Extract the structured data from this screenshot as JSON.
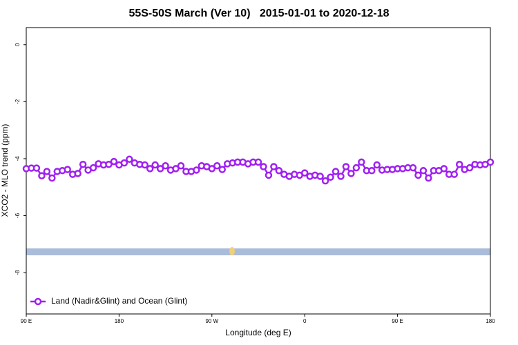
{
  "chart_data": {
    "type": "line",
    "title": "55S-50S March (Ver 10)   2015-01-01 to 2020-12-18",
    "xlabel": "Longitude (deg E)",
    "ylabel": "XCO2 - MLO trend (ppm)",
    "x": [
      90,
      95,
      100,
      105,
      110,
      115,
      120,
      125,
      130,
      135,
      140,
      145,
      150,
      155,
      160,
      165,
      170,
      175,
      180,
      185,
      190,
      195,
      200,
      205,
      210,
      215,
      220,
      225,
      230,
      235,
      240,
      245,
      250,
      255,
      260,
      265,
      270,
      275,
      280,
      285,
      290,
      295,
      300,
      305,
      310,
      315,
      320,
      325,
      330,
      335,
      340,
      345,
      350,
      355,
      360,
      365,
      370,
      375,
      380,
      385,
      390,
      395,
      400,
      405,
      410,
      415,
      420,
      425,
      430,
      435,
      440,
      445,
      450,
      455,
      460,
      465,
      470,
      475,
      480,
      485,
      490,
      495,
      500,
      505,
      510,
      515,
      520,
      525,
      530,
      535,
      540
    ],
    "series": [
      {
        "name": "Land (Nadir&Glint) and Ocean (Glint)",
        "color": "#a020f0",
        "values": [
          -4.35,
          -4.33,
          -4.33,
          -4.6,
          -4.45,
          -4.68,
          -4.45,
          -4.42,
          -4.38,
          -4.55,
          -4.52,
          -4.2,
          -4.4,
          -4.32,
          -4.18,
          -4.22,
          -4.2,
          -4.1,
          -4.22,
          -4.15,
          -4.02,
          -4.15,
          -4.2,
          -4.22,
          -4.35,
          -4.22,
          -4.35,
          -4.25,
          -4.4,
          -4.35,
          -4.25,
          -4.45,
          -4.45,
          -4.4,
          -4.25,
          -4.28,
          -4.35,
          -4.25,
          -4.38,
          -4.18,
          -4.15,
          -4.12,
          -4.12,
          -4.18,
          -4.12,
          -4.12,
          -4.28,
          -4.58,
          -4.28,
          -4.42,
          -4.55,
          -4.62,
          -4.55,
          -4.58,
          -4.5,
          -4.62,
          -4.58,
          -4.62,
          -4.78,
          -4.65,
          -4.45,
          -4.62,
          -4.28,
          -4.52,
          -4.32,
          -4.12,
          -4.42,
          -4.42,
          -4.22,
          -4.4,
          -4.38,
          -4.38,
          -4.35,
          -4.35,
          -4.32,
          -4.32,
          -4.58,
          -4.42,
          -4.68,
          -4.42,
          -4.42,
          -4.35,
          -4.55,
          -4.55,
          -4.2,
          -4.38,
          -4.32,
          -4.2,
          -4.22,
          -4.2,
          -4.12
        ]
      }
    ],
    "xlim": [
      90,
      540
    ],
    "xticks": [
      {
        "value": 90,
        "label": "90 E"
      },
      {
        "value": 180,
        "label": "180"
      },
      {
        "value": 270,
        "label": "90 W"
      },
      {
        "value": 360,
        "label": "0"
      },
      {
        "value": 450,
        "label": "90 E"
      },
      {
        "value": 540,
        "label": "180"
      }
    ],
    "ylim": [
      -9.45,
      0.6
    ],
    "yticks": [
      0,
      -2,
      -4,
      -6,
      -8
    ],
    "legend": "bottom-left"
  }
}
